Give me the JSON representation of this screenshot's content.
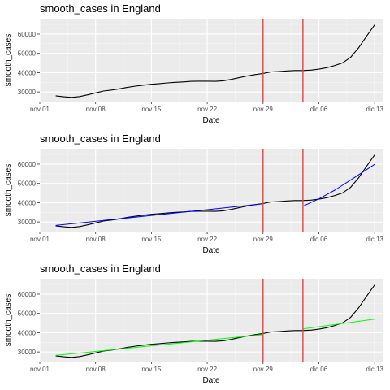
{
  "chart_data": [
    {
      "type": "line",
      "title": "smooth_cases in England",
      "xlabel": "Date",
      "ylabel": "smooth_cases",
      "xlim": [
        "2020-11-01",
        "2020-12-14"
      ],
      "ylim": [
        25000,
        68000
      ],
      "x_ticks": [
        "2020-11-01",
        "2020-11-08",
        "2020-11-15",
        "2020-11-22",
        "2020-11-29",
        "2020-12-06",
        "2020-12-13"
      ],
      "x_tick_labels": [
        "nov 01",
        "nov 08",
        "nov 15",
        "nov 22",
        "nov 29",
        "dic 06",
        "dic 13"
      ],
      "y_ticks": [
        30000,
        40000,
        50000,
        60000
      ],
      "y_tick_labels": [
        "30000",
        "40000",
        "50000",
        "60000"
      ],
      "grid": true,
      "vlines": {
        "x": [
          "2020-11-29",
          "2020-12-04"
        ],
        "color": "#e8433a"
      },
      "series": [
        {
          "color": "#000000",
          "x": [
            "2020-11-03",
            "2020-11-04",
            "2020-11-05",
            "2020-11-06",
            "2020-11-07",
            "2020-11-08",
            "2020-11-09",
            "2020-11-10",
            "2020-11-11",
            "2020-11-12",
            "2020-11-13",
            "2020-11-14",
            "2020-11-15",
            "2020-11-16",
            "2020-11-17",
            "2020-11-18",
            "2020-11-19",
            "2020-11-20",
            "2020-11-21",
            "2020-11-22",
            "2020-11-23",
            "2020-11-24",
            "2020-11-25",
            "2020-11-26",
            "2020-11-27",
            "2020-11-28",
            "2020-11-29",
            "2020-11-30",
            "2020-12-01",
            "2020-12-02",
            "2020-12-03",
            "2020-12-04",
            "2020-12-05",
            "2020-12-06",
            "2020-12-07",
            "2020-12-08",
            "2020-12-09",
            "2020-12-10",
            "2020-12-11",
            "2020-12-12",
            "2020-12-13"
          ],
          "y": [
            28000,
            27500,
            27200,
            27600,
            28500,
            29500,
            30500,
            31000,
            31600,
            32400,
            33000,
            33500,
            34000,
            34300,
            34700,
            35000,
            35200,
            35500,
            35600,
            35600,
            35500,
            35800,
            36500,
            37400,
            38300,
            39000,
            39600,
            40400,
            40600,
            40900,
            41100,
            41100,
            41300,
            41800,
            42600,
            43700,
            45100,
            48000,
            53000,
            59000,
            64800
          ]
        }
      ]
    },
    {
      "type": "line",
      "title": "smooth_cases in England",
      "xlabel": "Date",
      "ylabel": "smooth_cases",
      "xlim": [
        "2020-11-01",
        "2020-12-14"
      ],
      "ylim": [
        25000,
        68000
      ],
      "x_ticks": [
        "2020-11-01",
        "2020-11-08",
        "2020-11-15",
        "2020-11-22",
        "2020-11-29",
        "2020-12-06",
        "2020-12-13"
      ],
      "x_tick_labels": [
        "nov 01",
        "nov 08",
        "nov 15",
        "nov 22",
        "nov 29",
        "dic 06",
        "dic 13"
      ],
      "y_ticks": [
        30000,
        40000,
        50000,
        60000
      ],
      "y_tick_labels": [
        "30000",
        "40000",
        "50000",
        "60000"
      ],
      "grid": true,
      "vlines": {
        "x": [
          "2020-11-29",
          "2020-12-04"
        ],
        "color": "#e8433a"
      },
      "series": [
        {
          "color": "#000000",
          "x": [
            "2020-11-03",
            "2020-11-04",
            "2020-11-05",
            "2020-11-06",
            "2020-11-07",
            "2020-11-08",
            "2020-11-09",
            "2020-11-10",
            "2020-11-11",
            "2020-11-12",
            "2020-11-13",
            "2020-11-14",
            "2020-11-15",
            "2020-11-16",
            "2020-11-17",
            "2020-11-18",
            "2020-11-19",
            "2020-11-20",
            "2020-11-21",
            "2020-11-22",
            "2020-11-23",
            "2020-11-24",
            "2020-11-25",
            "2020-11-26",
            "2020-11-27",
            "2020-11-28",
            "2020-11-29",
            "2020-11-30",
            "2020-12-01",
            "2020-12-02",
            "2020-12-03",
            "2020-12-04",
            "2020-12-05",
            "2020-12-06",
            "2020-12-07",
            "2020-12-08",
            "2020-12-09",
            "2020-12-10",
            "2020-12-11",
            "2020-12-12",
            "2020-12-13"
          ],
          "y": [
            28000,
            27500,
            27200,
            27600,
            28500,
            29500,
            30500,
            31000,
            31600,
            32400,
            33000,
            33500,
            34000,
            34300,
            34700,
            35000,
            35200,
            35500,
            35600,
            35600,
            35500,
            35800,
            36500,
            37400,
            38300,
            39000,
            39600,
            40400,
            40600,
            40900,
            41100,
            41100,
            41300,
            41800,
            42600,
            43700,
            45100,
            48000,
            53000,
            59000,
            64800
          ]
        },
        {
          "color": "#0000ff",
          "x": [
            "2020-11-03",
            "2020-11-29"
          ],
          "y": [
            28200,
            39400
          ]
        },
        {
          "color": "#0000ff",
          "x": [
            "2020-12-04",
            "2020-12-06",
            "2020-12-08",
            "2020-12-10",
            "2020-12-13"
          ],
          "y": [
            38200,
            42000,
            46500,
            51800,
            59900
          ]
        }
      ]
    },
    {
      "type": "line",
      "title": "smooth_cases in England",
      "xlabel": "Date",
      "ylabel": "smooth_cases",
      "xlim": [
        "2020-11-01",
        "2020-12-14"
      ],
      "ylim": [
        25000,
        68000
      ],
      "x_ticks": [
        "2020-11-01",
        "2020-11-08",
        "2020-11-15",
        "2020-11-22",
        "2020-11-29",
        "2020-12-06",
        "2020-12-13"
      ],
      "x_tick_labels": [
        "nov 01",
        "nov 08",
        "nov 15",
        "nov 22",
        "nov 29",
        "dic 06",
        "dic 13"
      ],
      "y_ticks": [
        30000,
        40000,
        50000,
        60000
      ],
      "y_tick_labels": [
        "30000",
        "40000",
        "50000",
        "60000"
      ],
      "grid": true,
      "vlines": {
        "x": [
          "2020-11-29",
          "2020-12-04"
        ],
        "color": "#e8433a"
      },
      "series": [
        {
          "color": "#000000",
          "x": [
            "2020-11-03",
            "2020-11-04",
            "2020-11-05",
            "2020-11-06",
            "2020-11-07",
            "2020-11-08",
            "2020-11-09",
            "2020-11-10",
            "2020-11-11",
            "2020-11-12",
            "2020-11-13",
            "2020-11-14",
            "2020-11-15",
            "2020-11-16",
            "2020-11-17",
            "2020-11-18",
            "2020-11-19",
            "2020-11-20",
            "2020-11-21",
            "2020-11-22",
            "2020-11-23",
            "2020-11-24",
            "2020-11-25",
            "2020-11-26",
            "2020-11-27",
            "2020-11-28",
            "2020-11-29",
            "2020-11-30",
            "2020-12-01",
            "2020-12-02",
            "2020-12-03",
            "2020-12-04",
            "2020-12-05",
            "2020-12-06",
            "2020-12-07",
            "2020-12-08",
            "2020-12-09",
            "2020-12-10",
            "2020-12-11",
            "2020-12-12",
            "2020-12-13"
          ],
          "y": [
            28000,
            27500,
            27200,
            27600,
            28500,
            29500,
            30500,
            31000,
            31600,
            32400,
            33000,
            33500,
            34000,
            34300,
            34700,
            35000,
            35200,
            35500,
            35600,
            35600,
            35500,
            35800,
            36500,
            37400,
            38300,
            39000,
            39600,
            40400,
            40600,
            40900,
            41100,
            41100,
            41300,
            41800,
            42600,
            43700,
            45100,
            48000,
            53000,
            59000,
            64800
          ]
        },
        {
          "color": "#00ff00",
          "x": [
            "2020-11-03",
            "2020-11-29"
          ],
          "y": [
            28200,
            39000
          ]
        },
        {
          "color": "#00ff00",
          "x": [
            "2020-12-04",
            "2020-12-13"
          ],
          "y": [
            42000,
            47000
          ]
        }
      ]
    }
  ]
}
